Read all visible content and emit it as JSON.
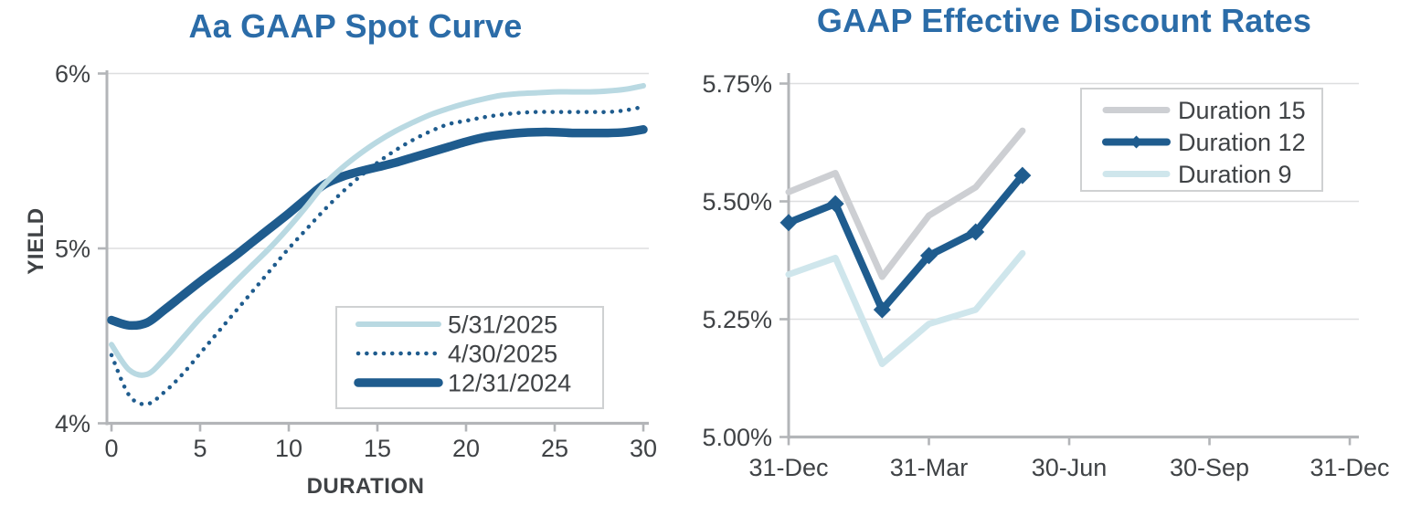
{
  "page": {
    "background": "#FFFFFF"
  },
  "colors": {
    "title_blue": "#2B6CA8",
    "dark_blue": "#1F5C8E",
    "light_blue": "#B9D9E2",
    "pale_blue": "#CFE6EC",
    "series_gray": "#CDCFD3",
    "axis_text": "#3F4245",
    "axis_line": "#B3B5B8",
    "gridline": "#DDDEDF",
    "legend_border": "#CFD1D2"
  },
  "chart_data": [
    {
      "type": "line",
      "title": "Aa GAAP Spot Curve",
      "xlabel": "DURATION",
      "ylabel": "YIELD",
      "xlim": [
        0,
        30
      ],
      "ylim": [
        4,
        6
      ],
      "xticks": [
        0,
        5,
        10,
        15,
        20,
        25,
        30
      ],
      "xtick_labels": [
        "0",
        "5",
        "10",
        "15",
        "20",
        "25",
        "30"
      ],
      "yticks": [
        4,
        5,
        6
      ],
      "ytick_labels": [
        "4%",
        "5%",
        "6%"
      ],
      "grid": "horizontal",
      "legend_position": "inside-lower-right",
      "legend_entries": [
        "5/31/2025",
        "4/30/2025",
        "12/31/2024"
      ],
      "x": [
        0,
        1,
        2,
        3,
        4,
        5,
        6,
        7,
        8,
        9,
        10,
        11,
        12,
        13,
        14,
        15,
        16,
        17,
        18,
        19,
        20,
        21,
        22,
        23,
        24,
        25,
        26,
        27,
        28,
        29,
        30
      ],
      "series": [
        {
          "name": "5/31/2025",
          "color": "#B9D9E2",
          "line_style": "solid",
          "line_width": 6,
          "values": [
            4.45,
            4.305,
            4.28,
            4.37,
            4.485,
            4.6,
            4.705,
            4.81,
            4.91,
            5.01,
            5.12,
            5.24,
            5.365,
            5.46,
            5.54,
            5.61,
            5.67,
            5.72,
            5.765,
            5.8,
            5.83,
            5.855,
            5.875,
            5.885,
            5.89,
            5.895,
            5.895,
            5.895,
            5.9,
            5.91,
            5.93
          ]
        },
        {
          "name": "4/30/2025",
          "color": "#1F5C8E",
          "line_style": "dotted",
          "line_width": 4.5,
          "values": [
            4.39,
            4.16,
            4.11,
            4.18,
            4.28,
            4.4,
            4.52,
            4.64,
            4.76,
            4.88,
            5.0,
            5.11,
            5.22,
            5.32,
            5.41,
            5.49,
            5.56,
            5.62,
            5.67,
            5.71,
            5.73,
            5.75,
            5.765,
            5.775,
            5.78,
            5.78,
            5.78,
            5.78,
            5.78,
            5.79,
            5.81
          ]
        },
        {
          "name": "12/31/2024",
          "color": "#1F5C8E",
          "line_style": "solid",
          "line_width": 9.5,
          "values": [
            4.59,
            4.56,
            4.575,
            4.65,
            4.73,
            4.81,
            4.885,
            4.96,
            5.04,
            5.12,
            5.2,
            5.285,
            5.365,
            5.41,
            5.44,
            5.465,
            5.49,
            5.52,
            5.55,
            5.58,
            5.61,
            5.635,
            5.65,
            5.66,
            5.665,
            5.665,
            5.66,
            5.66,
            5.66,
            5.665,
            5.68
          ]
        }
      ]
    },
    {
      "type": "line",
      "title": "GAAP Effective Discount Rates",
      "xlabel": "",
      "ylabel": "",
      "x_unit": "months-after-31-Dec",
      "xlim": [
        0,
        12
      ],
      "ylim": [
        5.0,
        5.75
      ],
      "xticks": [
        0,
        3,
        6,
        9,
        12
      ],
      "xtick_labels": [
        "31-Dec",
        "31-Mar",
        "30-Jun",
        "30-Sep",
        "31-Dec"
      ],
      "yticks": [
        5.0,
        5.25,
        5.5,
        5.75
      ],
      "ytick_labels": [
        "5.00%",
        "5.25%",
        "5.50%",
        "5.75%"
      ],
      "grid": "horizontal",
      "legend_position": "inside-upper-right",
      "legend_entries": [
        "Duration 15",
        "Duration 12",
        "Duration 9"
      ],
      "x": [
        0,
        1,
        2,
        3,
        4,
        5
      ],
      "series": [
        {
          "name": "Duration 15",
          "color": "#CDCFD3",
          "line_style": "solid",
          "line_width": 7,
          "values": [
            5.52,
            5.56,
            5.34,
            5.47,
            5.53,
            5.65
          ]
        },
        {
          "name": "Duration 12",
          "color": "#1F5C8E",
          "line_style": "solid",
          "line_width": 8,
          "marker": "diamond",
          "values": [
            5.455,
            5.495,
            5.27,
            5.385,
            5.435,
            5.555
          ]
        },
        {
          "name": "Duration 9",
          "color": "#CFE6EC",
          "line_style": "solid",
          "line_width": 7,
          "values": [
            5.345,
            5.38,
            5.155,
            5.24,
            5.27,
            5.39
          ]
        }
      ]
    }
  ]
}
